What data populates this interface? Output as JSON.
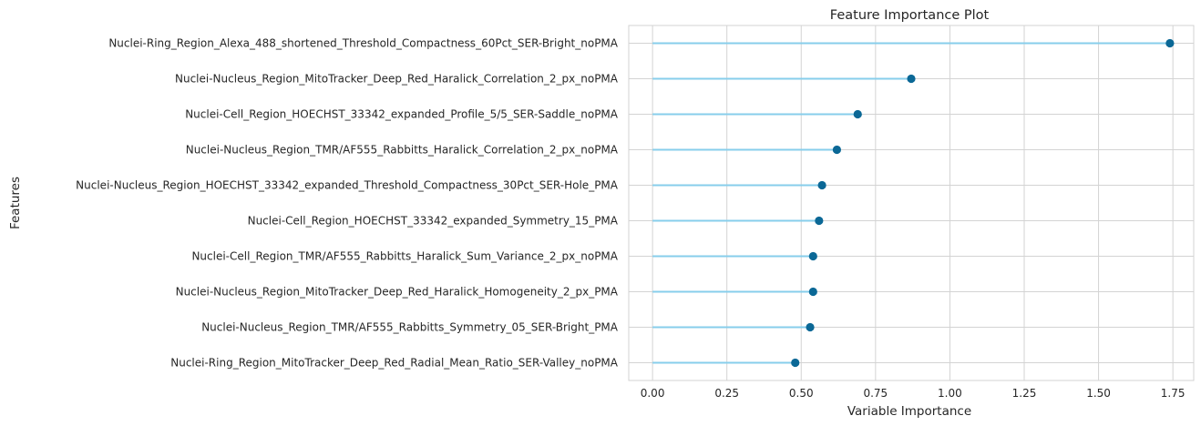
{
  "chart_data": {
    "type": "lollipop",
    "title": "Feature Importance Plot",
    "xlabel": "Variable Importance",
    "ylabel": "Features",
    "xlim": [
      -0.08,
      1.82
    ],
    "xticks": [
      0.0,
      0.25,
      0.5,
      0.75,
      1.0,
      1.25,
      1.5,
      1.75
    ],
    "xtick_labels": [
      "0.00",
      "0.25",
      "0.50",
      "0.75",
      "1.00",
      "1.25",
      "1.50",
      "1.75"
    ],
    "grid": true,
    "colors": {
      "stem": "#87ceeb",
      "marker": "#0b6896",
      "grid": "#d3d3d3",
      "text": "#262626"
    },
    "categories": [
      "Nuclei-Ring_Region_Alexa_488_shortened_Threshold_Compactness_60Pct_SER-Bright_noPMA",
      "Nuclei-Nucleus_Region_MitoTracker_Deep_Red_Haralick_Correlation_2_px_noPMA",
      "Nuclei-Cell_Region_HOECHST_33342_expanded_Profile_5/5_SER-Saddle_noPMA",
      "Nuclei-Nucleus_Region_TMR/AF555_Rabbitts_Haralick_Correlation_2_px_noPMA",
      "Nuclei-Nucleus_Region_HOECHST_33342_expanded_Threshold_Compactness_30Pct_SER-Hole_PMA",
      "Nuclei-Cell_Region_HOECHST_33342_expanded_Symmetry_15_PMA",
      "Nuclei-Cell_Region_TMR/AF555_Rabbitts_Haralick_Sum_Variance_2_px_noPMA",
      "Nuclei-Nucleus_Region_MitoTracker_Deep_Red_Haralick_Homogeneity_2_px_PMA",
      "Nuclei-Nucleus_Region_TMR/AF555_Rabbitts_Symmetry_05_SER-Bright_PMA",
      "Nuclei-Ring_Region_MitoTracker_Deep_Red_Radial_Mean_Ratio_SER-Valley_noPMA"
    ],
    "values": [
      1.74,
      0.87,
      0.69,
      0.62,
      0.57,
      0.56,
      0.54,
      0.54,
      0.53,
      0.48
    ]
  }
}
